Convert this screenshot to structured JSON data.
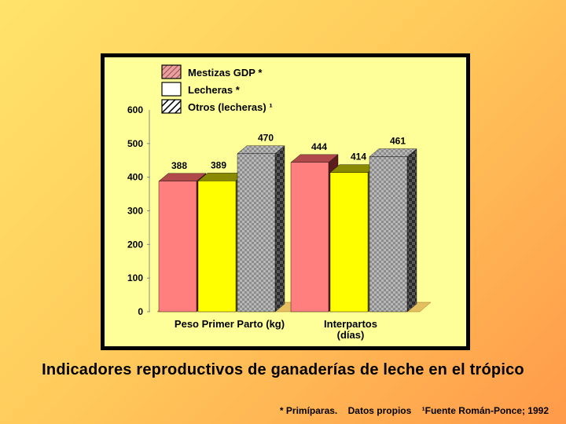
{
  "chart_data": {
    "type": "bar",
    "title": "Indicadores reproductivos de ganaderías de leche en el trópico",
    "xlabel": "",
    "ylabel": "",
    "ylim": [
      0,
      600
    ],
    "yticks": [
      "0",
      "100",
      "200",
      "300",
      "400",
      "500",
      "600"
    ],
    "categories": [
      "Peso Primer Parto (kg)",
      "Interpartos\n(días)"
    ],
    "categories_display": [
      [
        "Peso Primer Parto (kg)"
      ],
      [
        "Interpartos",
        "(días)"
      ]
    ],
    "series": [
      {
        "name": "Mestizas GDP *",
        "values": [
          388,
          444
        ],
        "labels": [
          "388",
          "444"
        ]
      },
      {
        "name": "Lecheras *",
        "values": [
          389,
          414
        ],
        "labels": [
          "389",
          "414"
        ]
      },
      {
        "name": "Otros (lecheras) ¹",
        "values": [
          470,
          461
        ],
        "labels": [
          "470",
          "461"
        ]
      }
    ],
    "legend": "top-left",
    "grid": false,
    "colors": {
      "mestizas_front": "#ff7f7f",
      "mestizas_top": "#b04a4a",
      "mestizas_side": "#5a1c1c",
      "lecheras_front": "#ffff00",
      "lecheras_top": "#8a8a00",
      "lecheras_side": "#5a5a00",
      "otros_front": "#a0a0a0",
      "otros_side": "#303030",
      "plot_bg": "#ffff99",
      "frame": "#000000"
    },
    "legend_swatches": [
      "hatched-brown",
      "white-box",
      "black-white-hatch"
    ]
  },
  "footnote": {
    "primiparas": "* Primíparas.",
    "datos": "Datos propios",
    "fuente": "¹Fuente Román-Ponce; 1992"
  }
}
